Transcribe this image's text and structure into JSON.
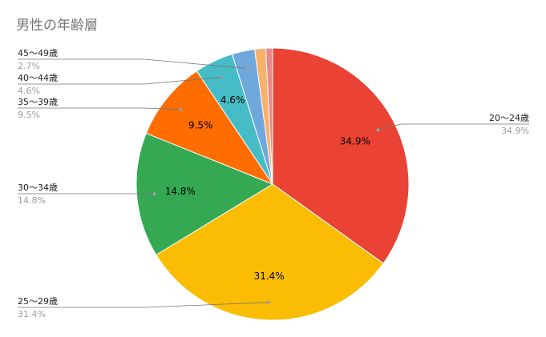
{
  "chart_data": {
    "type": "pie",
    "title": "男性の年齢層",
    "categories": [
      "20〜24歳",
      "25〜29歳",
      "30〜34歳",
      "35〜39歳",
      "40〜44歳",
      "45〜49歳",
      null,
      null
    ],
    "values": [
      34.9,
      31.4,
      14.8,
      9.5,
      4.6,
      2.7,
      1.3,
      0.8
    ],
    "value_labels": [
      "34.9%",
      "31.4%",
      "14.8%",
      "9.5%",
      "4.6%",
      "2.7%",
      null,
      null
    ],
    "colors": [
      "#ea4335",
      "#fbbc04",
      "#34a853",
      "#ff6d01",
      "#46bdc6",
      "#6fa8dc",
      "#f6b26b",
      "#e8888a"
    ]
  }
}
